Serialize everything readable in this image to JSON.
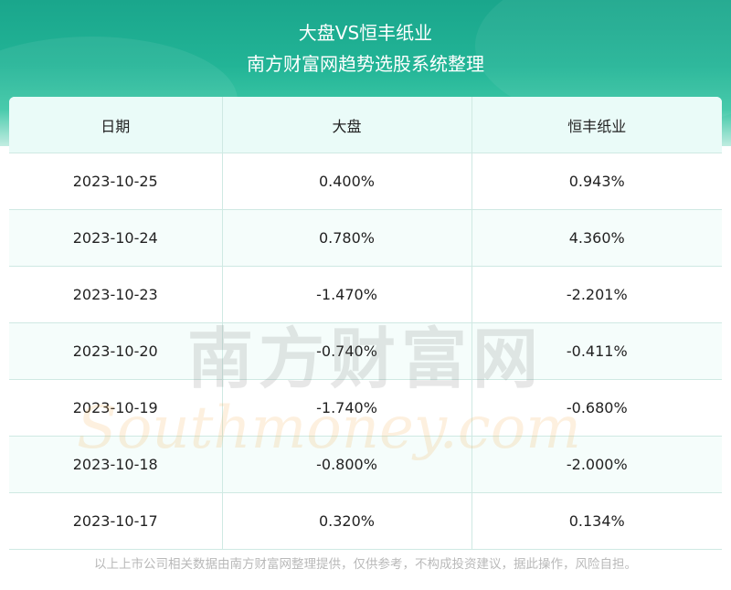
{
  "header": {
    "title": "大盘VS恒丰纸业",
    "subtitle": "南方财富网趋势选股系统整理"
  },
  "table": {
    "columns": [
      "日期",
      "大盘",
      "恒丰纸业"
    ],
    "rows": [
      [
        "2023-10-25",
        "0.400%",
        "0.943%"
      ],
      [
        "2023-10-24",
        "0.780%",
        "4.360%"
      ],
      [
        "2023-10-23",
        "-1.470%",
        "-2.201%"
      ],
      [
        "2023-10-20",
        "-0.740%",
        "-0.411%"
      ],
      [
        "2023-10-19",
        "-1.740%",
        "-0.680%"
      ],
      [
        "2023-10-18",
        "-0.800%",
        "-2.000%"
      ],
      [
        "2023-10-17",
        "0.320%",
        "0.134%"
      ]
    ]
  },
  "watermark": {
    "cn": "南方财富网",
    "en": "Southmoney.com"
  },
  "footer": {
    "disclaimer": "以上上市公司相关数据由南方财富网整理提供，仅供参考，不构成投资建议，据此操作，风险自担。"
  },
  "colors": {
    "header_top": "#1aa68c",
    "header_bottom": "#bfece0",
    "table_head_bg": "#eafbf8",
    "grid": "#cfe9e3",
    "footer_text": "#b9b9b9"
  }
}
